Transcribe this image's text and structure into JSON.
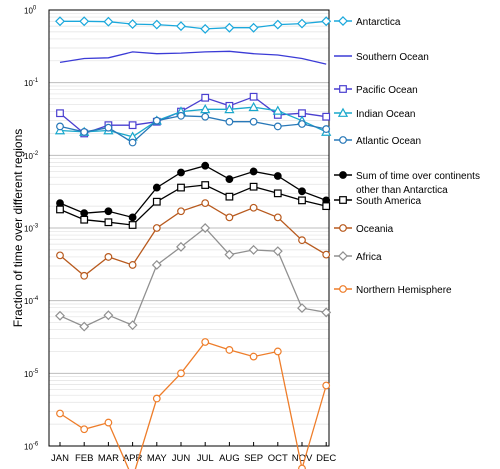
{
  "chart_data": {
    "type": "line",
    "title": "",
    "xlabel": "",
    "ylabel": "Fraction of time over different regions",
    "yscale": "log",
    "ylim": [
      1e-06,
      1
    ],
    "grid": true,
    "legend_position": "right",
    "yticks": [
      {
        "value": 1,
        "base": "10",
        "exp": "0"
      },
      {
        "value": 0.1,
        "base": "10",
        "exp": "-1"
      },
      {
        "value": 0.01,
        "base": "10",
        "exp": "-2"
      },
      {
        "value": 0.001,
        "base": "10",
        "exp": "-3"
      },
      {
        "value": 0.0001,
        "base": "10",
        "exp": "-4"
      },
      {
        "value": 1e-05,
        "base": "10",
        "exp": "-5"
      },
      {
        "value": 1e-06,
        "base": "10",
        "exp": "-6"
      }
    ],
    "categories": [
      "JAN",
      "FEB",
      "MAR",
      "APR",
      "MAY",
      "JUN",
      "JUL",
      "AUG",
      "SEP",
      "OCT",
      "NOV",
      "DEC"
    ],
    "series": [
      {
        "name": "Antarctica",
        "color": "#1ba8dc",
        "marker": "diamond",
        "fill": "#ffffff",
        "values": [
          0.7,
          0.7,
          0.69,
          0.64,
          0.63,
          0.6,
          0.55,
          0.57,
          0.57,
          0.63,
          0.65,
          0.7
        ]
      },
      {
        "name": "Southern Ocean",
        "color": "#3b3bd6",
        "marker": "none",
        "fill": "none",
        "values": [
          0.19,
          0.215,
          0.22,
          0.265,
          0.25,
          0.255,
          0.265,
          0.27,
          0.25,
          0.24,
          0.215,
          0.18
        ]
      },
      {
        "name": "Pacific Ocean",
        "color": "#4a3fd0",
        "marker": "square",
        "fill": "#ffffff",
        "values": [
          0.038,
          0.02,
          0.026,
          0.026,
          0.029,
          0.04,
          0.062,
          0.048,
          0.064,
          0.036,
          0.038,
          0.034
        ]
      },
      {
        "name": "Indian Ocean",
        "color": "#1aa8cc",
        "marker": "triangle",
        "fill": "#ffffff",
        "values": [
          0.022,
          0.021,
          0.022,
          0.018,
          0.03,
          0.04,
          0.043,
          0.043,
          0.046,
          0.041,
          0.03,
          0.021
        ]
      },
      {
        "name": "Atlantic Ocean",
        "color": "#2878b8",
        "marker": "circle",
        "fill": "#ffffff",
        "values": [
          0.025,
          0.021,
          0.024,
          0.015,
          0.03,
          0.035,
          0.034,
          0.029,
          0.029,
          0.025,
          0.027,
          0.023
        ]
      },
      {
        "name": "Sum of time over continents other than Antarctica",
        "color": "#000000",
        "marker": "circle",
        "fill": "#000000",
        "values": [
          0.0022,
          0.0016,
          0.0017,
          0.0014,
          0.0036,
          0.0058,
          0.0072,
          0.0047,
          0.006,
          0.0052,
          0.0032,
          0.0024
        ]
      },
      {
        "name": "South America",
        "color": "#000000",
        "marker": "square",
        "fill": "#ffffff",
        "values": [
          0.0018,
          0.0013,
          0.0012,
          0.0011,
          0.0023,
          0.0036,
          0.0039,
          0.0027,
          0.0037,
          0.003,
          0.0024,
          0.002
        ]
      },
      {
        "name": "Oceania",
        "color": "#b85a1e",
        "marker": "circle",
        "fill": "#ffffff",
        "values": [
          0.00042,
          0.00022,
          0.0004,
          0.00031,
          0.001,
          0.0017,
          0.0022,
          0.0014,
          0.0019,
          0.0014,
          0.00068,
          0.00043
        ]
      },
      {
        "name": "Africa",
        "color": "#909090",
        "marker": "diamond",
        "fill": "#ffffff",
        "values": [
          6.2e-05,
          4.4e-05,
          6.3e-05,
          4.6e-05,
          0.00031,
          0.00055,
          0.001,
          0.00043,
          0.0005,
          0.00048,
          7.9e-05,
          6.9e-05
        ]
      },
      {
        "name": "Northern Hemisphere",
        "color": "#ee7d2a",
        "marker": "circle",
        "fill": "#ffffff",
        "values": [
          2.8e-06,
          1.7e-06,
          2.1e-06,
          3.6e-07,
          4.5e-06,
          1e-05,
          2.7e-05,
          2.1e-05,
          1.7e-05,
          2e-05,
          4.9e-07,
          6.8e-06
        ]
      }
    ],
    "legend_lines": [
      [
        "Antarctica"
      ],
      [
        "Southern Ocean"
      ],
      [
        "Pacific Ocean"
      ],
      [
        "Indian Ocean"
      ],
      [
        "Atlantic Ocean"
      ],
      [
        "Sum of time over continents",
        "other than Antarctica"
      ],
      [
        "South America"
      ],
      [
        "Oceania"
      ],
      [
        "Africa"
      ],
      [
        "Northern Hemisphere"
      ]
    ]
  }
}
